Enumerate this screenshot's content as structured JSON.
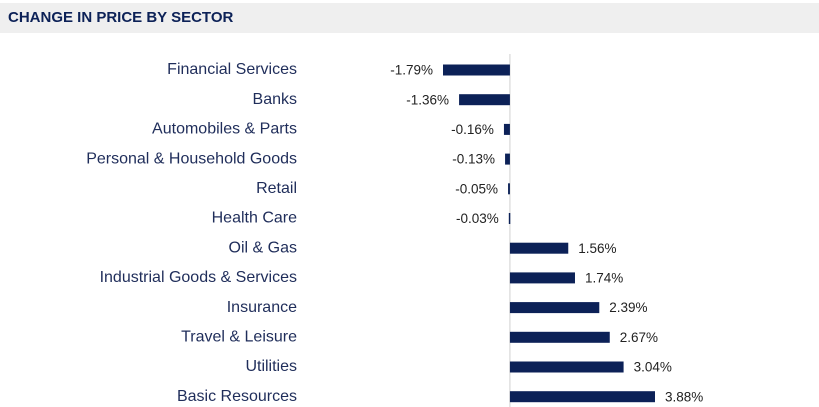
{
  "chart_data": {
    "type": "bar",
    "orientation": "horizontal",
    "title": "CHANGE IN PRICE BY SECTOR",
    "categories": [
      "Financial Services",
      "Banks",
      "Automobiles & Parts",
      "Personal & Household Goods",
      "Retail",
      "Health Care",
      "Oil & Gas",
      "Industrial Goods & Services",
      "Insurance",
      "Travel & Leisure",
      "Utilities",
      "Basic Resources"
    ],
    "values": [
      -1.79,
      -1.36,
      -0.16,
      -0.13,
      -0.05,
      -0.03,
      1.56,
      1.74,
      2.39,
      2.67,
      3.04,
      3.88
    ],
    "value_labels": [
      "-1.79%",
      "-1.36%",
      "-0.16%",
      "-0.13%",
      "-0.05%",
      "-0.03%",
      "1.56%",
      "1.74%",
      "2.39%",
      "2.67%",
      "3.04%",
      "3.88%"
    ],
    "color": "#0c2157"
  }
}
